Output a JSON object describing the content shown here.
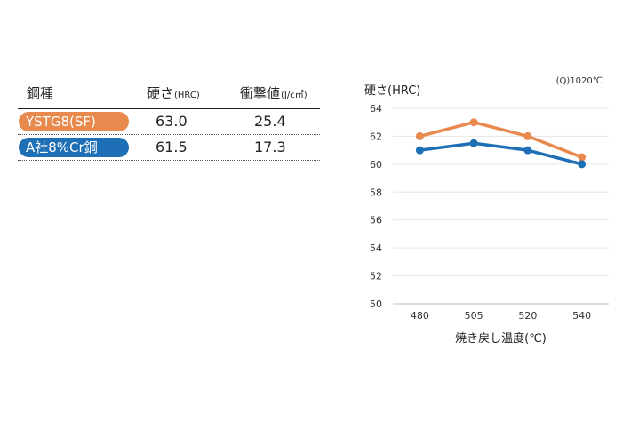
{
  "table": {
    "headers": {
      "steel": "鋼種",
      "hardness": "硬さ",
      "hardness_unit": "(HRC)",
      "impact": "衝撃値",
      "impact_unit": "(J/c㎡)"
    },
    "rows": [
      {
        "name": "YSTG8(SF)",
        "hardness": "63.0",
        "impact": "25.4",
        "color": "#E8894E"
      },
      {
        "name": "A社8%Cr鋼",
        "hardness": "61.5",
        "impact": "17.3",
        "color": "#1E6FB5"
      }
    ]
  },
  "chart_data": {
    "type": "line",
    "ylabel": "硬さ(HRC)",
    "xlabel": "焼き戻し温度(℃)",
    "condition": "(Q)1020℃",
    "categories": [
      "480",
      "505",
      "520",
      "540"
    ],
    "ylim": [
      50,
      64
    ],
    "yticks": [
      50,
      52,
      54,
      56,
      58,
      60,
      62,
      64
    ],
    "grid": true,
    "series": [
      {
        "values": [
          62,
          63,
          62,
          60.5
        ],
        "color": "#E8894E"
      },
      {
        "values": [
          61,
          61.5,
          61,
          60
        ],
        "color": "#1E6FB5"
      }
    ]
  }
}
